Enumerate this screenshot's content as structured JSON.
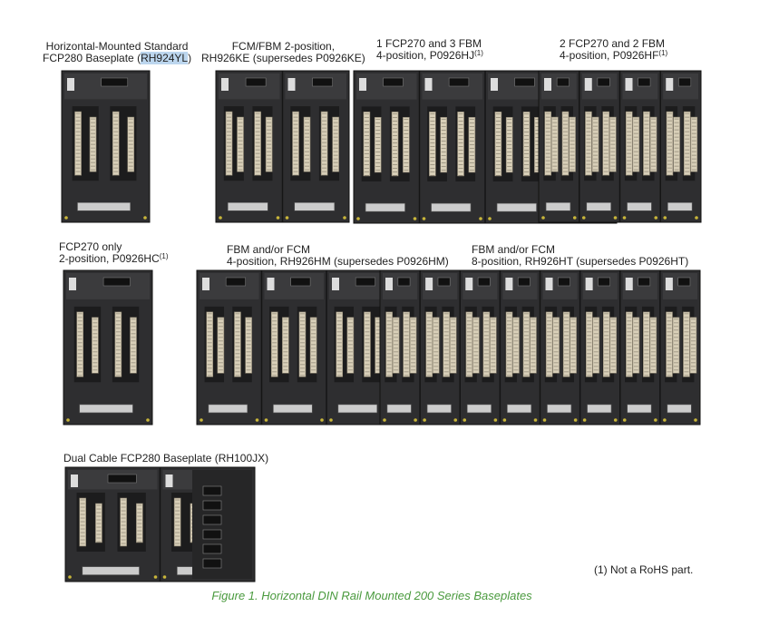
{
  "items": [
    {
      "line1": "Horizontal-Mounted Standard",
      "line2_pre": "FCP280 Baseplate (",
      "line2_mark": "RH924YL",
      "line2_post": ")"
    },
    {
      "line1": "FCM/FBM 2-position,",
      "line2": "RH926KE (supersedes P0926KE)"
    },
    {
      "line1": "1 FCP270 and 3 FBM",
      "line2": "4-position, P0926HJ",
      "note": "(1)"
    },
    {
      "line1": "2 FCP270 and 2 FBM",
      "line2": "4-position, P0926HF",
      "note": "(1)"
    },
    {
      "line1": "FCP270 only",
      "line2": "2-position, P0926HC",
      "note": "(1)"
    },
    {
      "line1": "FBM and/or FCM",
      "line2": "4-position, RH926HM (supersedes P0926HM)"
    },
    {
      "line1": "FBM and/or FCM",
      "line2": "8-position, RH926HT (supersedes P0926HT)"
    },
    {
      "line1": "Dual Cable FCP280 Baseplate (RH100JX)"
    }
  ],
  "footnote": "(1) Not a RoHS part.",
  "figure_caption": "Figure 1. Horizontal DIN Rail Mounted 200 Series Baseplates"
}
